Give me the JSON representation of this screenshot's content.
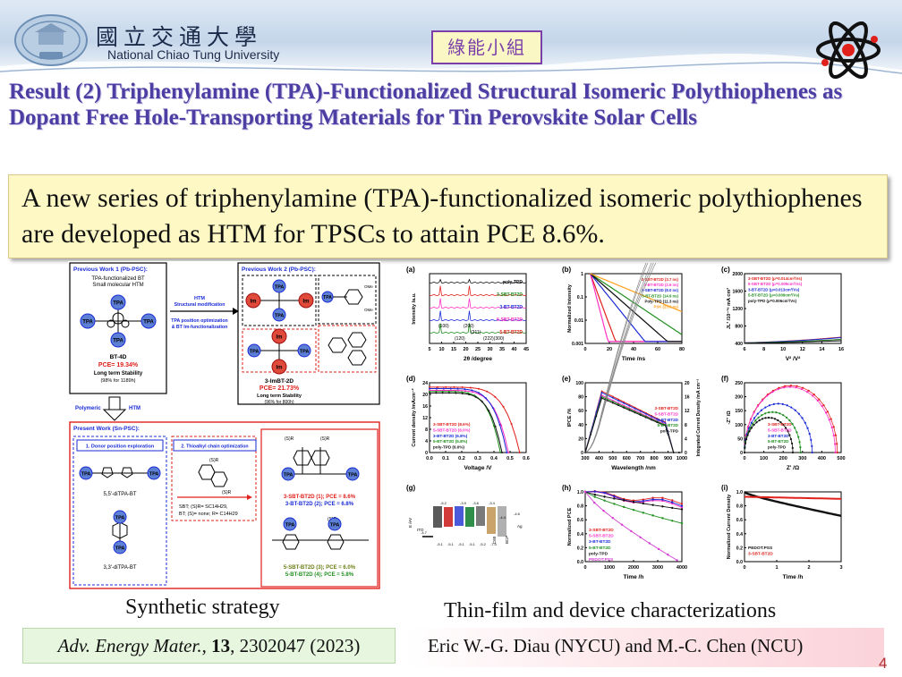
{
  "header": {
    "university_cn": "國立交通大學",
    "university_en": "National Chiao Tung University",
    "group_badge": "綠能小組"
  },
  "title": "Result (2) Triphenylamine (TPA)-Functionalized Structural Isomeric Polythiophenes as Dopant Free Hole-Transporting Materials for Tin Perovskite Solar Cells",
  "summary": "A new series of triphenylamine (TPA)-functionalized isomeric polythiophenes are developed as HTM for TPSCs to attain PCE 8.6%.",
  "left_figure": {
    "prev1_title": "Previous Work 1 (Pb-PSC):",
    "prev1_sub": "TPA-functionalized BT",
    "prev1_sub2": "Small molecular HTM",
    "prev1_mol": "BT-4D",
    "prev1_pce": "PCE= 19.34%",
    "prev1_stab": "Long term Stability",
    "prev1_stab2": "(98% for 1189h)",
    "arrow_a": "HTM",
    "arrow_b": "Structural modification",
    "arrow_c": "TPA position optimization",
    "arrow_d": "& BT Im-functionalization",
    "prev2_title": "Previous Work 2 (Pb-PSC):",
    "prev2_mol": "3-ImBT-2D",
    "prev2_pce": "PCE= 21.73%",
    "prev2_stab": "Long term Stability",
    "prev2_stab2": "(96% for 800h)",
    "polymeric": "Polymeric",
    "htm": "HTM",
    "present_title": "Present Work (Sn-PSC):",
    "step1": "1. Donor position exploration",
    "step2": "2. Thioalkyl chain optimization",
    "mol_55": "5,5'-diTPA-BT",
    "mol_33": "3,3'-diTPA-BT",
    "def1": "SBT; (S)R= SC14H29,",
    "def2": "BT; (S)= none; R= C14H29",
    "res1": "3-SBT-BT2D (1); PCE = 8.6%",
    "res2": "3-BT-BT2D (2); PCE = 6.8%",
    "res3": "5-SBT-BT2D (3); PCE = 6.0%",
    "res4": "5-BT-BT2D (4); PCE = 5.8%",
    "tpa": "TPA",
    "im": "Im",
    "sr": "(S)R",
    "ome": "OMe"
  },
  "right_figure": {
    "a": {
      "label": "(a)",
      "xlabel": "2θ /degree",
      "ylabel": "Intensity /a.u.",
      "series": [
        "poly-TPD",
        "3-SBT-BT2D",
        "3-BT-BT2D",
        "5-SBT-BT2D",
        "5-BT-BT2D"
      ],
      "peaks": [
        "(100)",
        "(200)",
        "(211)",
        "(120)",
        "(222)(300)"
      ],
      "xticks": [
        "5",
        "10",
        "15",
        "20",
        "25",
        "30",
        "35",
        "40",
        "45"
      ]
    },
    "b": {
      "label": "(b)",
      "xlabel": "Time /ns",
      "ylabel": "Normalized Intensity",
      "legend": [
        "3-SBT-BT2D (3.7 ns)",
        "3-BT-BT2D (2.6 ns)",
        "5-SBT-BT2D (8.0 ns)",
        "5-BT-BT2D (14.9 ns)",
        "Poly-TPD (11.3 ns)",
        "PSK (23.9 ns)"
      ],
      "xticks": [
        "0",
        "20",
        "40",
        "60",
        "80"
      ],
      "yticks": [
        "1",
        "0.1",
        "0.01",
        "0.001"
      ]
    },
    "c": {
      "label": "(c)",
      "xlabel": "V² /V²",
      "ylabel": "JL³ /10⁻¹⁶ mA cm³",
      "legend": [
        "3-SBT-BT2D (μ=0.014cm²/Vs)",
        "5-SBT-BT2D (μ=0.009cm²/Vs)",
        "3-BT-BT2D (μ=0.013cm²/Vs)",
        "5-BT-BT2D (μ=0.009cm²/Vs)",
        "poly-TPD (μ=0.006cm²/Vs)"
      ],
      "xticks": [
        "6",
        "8",
        "10",
        "12",
        "14",
        "16"
      ],
      "yticks": [
        "2000",
        "1600",
        "1200",
        "800",
        "400"
      ]
    },
    "d": {
      "label": "(d)",
      "xlabel": "Voltage /V",
      "ylabel": "Current density /mAcm⁻²",
      "legend": [
        "3-SBT-BT2D (8.6%)",
        "5-SBT-BT2D (6.0%)",
        "3-BT-BT2D (6.8%)",
        "5-BT-BT2D (5.8%)",
        "poly-TPD (6.0%)"
      ],
      "xticks": [
        "0.0",
        "0.1",
        "0.2",
        "0.3",
        "0.4",
        "0.5",
        "0.6"
      ],
      "yticks": [
        "24",
        "20",
        "16",
        "12",
        "8",
        "4",
        "0"
      ]
    },
    "e": {
      "label": "(e)",
      "xlabel": "Wavelength /nm",
      "ylabel": "IPCE /%",
      "ylabel2": "Integrated Current Density /mA cm⁻²",
      "legend": [
        "3-SBT-BT2D",
        "5-SBT-BT2D",
        "3-BT-BT2D",
        "5-BT-BT2D",
        "poly-TPD"
      ],
      "xticks": [
        "300",
        "400",
        "500",
        "600",
        "700",
        "800",
        "900",
        "1000"
      ],
      "yticks": [
        "100",
        "80",
        "60",
        "40",
        "20",
        "0"
      ],
      "yticks2": [
        "20",
        "16",
        "12",
        "8",
        "4",
        "0"
      ]
    },
    "f": {
      "label": "(f)",
      "xlabel": "Z' /Ω",
      "ylabel": "-Z'' /Ω",
      "legend": [
        "3-SBT-BT2D",
        "5-SBT-BT2D",
        "3-BT-BT2D",
        "5-BT-BT2D",
        "poly-TPD"
      ],
      "xticks": [
        "0",
        "100",
        "200",
        "300",
        "400",
        "500"
      ],
      "yticks": [
        "250",
        "200",
        "150",
        "100",
        "50",
        "0"
      ]
    },
    "g": {
      "label": "(g)",
      "ito": "ITO",
      "evac": "E /eV",
      "boxes": [
        "-4.7",
        "-5.2",
        "-3.9",
        "-3.8",
        "-3.8",
        "-3.4",
        "-3.8",
        "-4.4",
        "-4.6"
      ],
      "layers": [
        "-5.1",
        "-5.1",
        "-5.1",
        "-5.1",
        "-5.2",
        "-7.0"
      ],
      "labels": [
        "C60",
        "BCP",
        "Ag"
      ]
    },
    "h": {
      "label": "(h)",
      "xlabel": "Time /h",
      "ylabel": "Normalized PCE",
      "legend": [
        "3-SBT-BT2D",
        "5-SBT-BT2D",
        "3-BT-BT2D",
        "5-BT-BT2D",
        "poly-TPD",
        "PEDOT:PSS"
      ],
      "xticks": [
        "0",
        "1000",
        "2000",
        "3000",
        "4000"
      ],
      "yticks": [
        "1.0",
        "0.8",
        "0.6",
        "0.4",
        "0.2",
        "0.0"
      ]
    },
    "i": {
      "label": "(i)",
      "xlabel": "Time /h",
      "ylabel": "Normalized Current Density",
      "legend": [
        "PEDOT:PSS",
        "3-SBT-BT2D"
      ],
      "xticks": [
        "0",
        "1",
        "2",
        "3"
      ],
      "yticks": [
        "1.0",
        "0.8",
        "0.6",
        "0.4",
        "0.2",
        "0.0"
      ]
    }
  },
  "captions": {
    "left": "Synthetic strategy",
    "right": "Thin-film and device characterizations"
  },
  "citation": {
    "journal": "Adv. Energy Mater.",
    "volume": "13",
    "rest": ", 2302047 (2023)"
  },
  "authors": "Eric W.-G. Diau (NYCU) and M.-C. Chen (NCU)",
  "page_number": "4",
  "colors": {
    "title": "#4c3ea2",
    "summary_bg": "#fdf8c4",
    "badge_border": "#7a3fa8",
    "citation_bg": "#e7f6df",
    "page_number": "#b03030",
    "series_red": "#e0201b",
    "series_pink": "#ff2ec4",
    "series_blue": "#1a2bd6",
    "series_green": "#1f8f1f",
    "series_black": "#111111"
  }
}
